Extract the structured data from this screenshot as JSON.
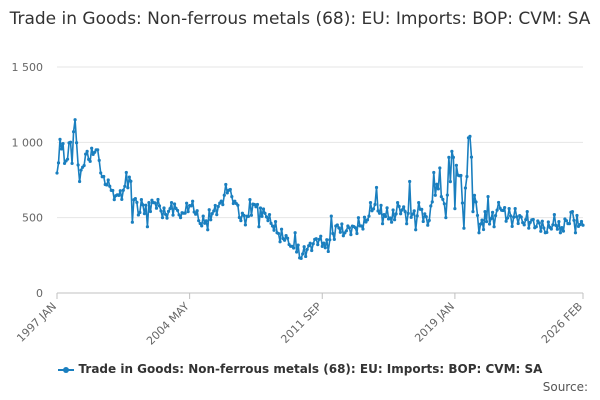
{
  "chart_data": {
    "type": "line",
    "title": "Trade in Goods: Non-ferrous metals (68): EU: Imports: BOP: CVM: SA",
    "xlabel": "",
    "ylabel": "",
    "ylim": [
      0,
      1500
    ],
    "yticks": [
      0,
      500,
      1000,
      1500
    ],
    "ytick_labels": [
      "0",
      "500",
      "1 000",
      "1 500"
    ],
    "xtick_labels": [
      "1997 JAN",
      "2004 MAY",
      "2011 SEP",
      "2019 JAN",
      "2026 FEB"
    ],
    "xtick_index": [
      0,
      88,
      176,
      264,
      349
    ],
    "n_points": 350,
    "grid": true,
    "legend_position": "bottom",
    "series": [
      {
        "name": "Trade in Goods: Non-ferrous metals (68): EU: Imports: BOP: CVM: SA",
        "color": "#1a7fbf",
        "anchors": [
          [
            0,
            780
          ],
          [
            3,
            1000
          ],
          [
            6,
            880
          ],
          [
            9,
            1000
          ],
          [
            12,
            1120
          ],
          [
            15,
            760
          ],
          [
            18,
            880
          ],
          [
            22,
            900
          ],
          [
            26,
            960
          ],
          [
            30,
            760
          ],
          [
            36,
            700
          ],
          [
            42,
            640
          ],
          [
            48,
            760
          ],
          [
            54,
            540
          ],
          [
            60,
            580
          ],
          [
            66,
            600
          ],
          [
            72,
            520
          ],
          [
            78,
            560
          ],
          [
            84,
            540
          ],
          [
            90,
            580
          ],
          [
            96,
            460
          ],
          [
            102,
            520
          ],
          [
            108,
            580
          ],
          [
            114,
            700
          ],
          [
            120,
            560
          ],
          [
            126,
            480
          ],
          [
            132,
            600
          ],
          [
            138,
            520
          ],
          [
            144,
            440
          ],
          [
            150,
            380
          ],
          [
            156,
            320
          ],
          [
            162,
            250
          ],
          [
            168,
            310
          ],
          [
            174,
            350
          ],
          [
            180,
            320
          ],
          [
            186,
            440
          ],
          [
            192,
            420
          ],
          [
            198,
            430
          ],
          [
            204,
            460
          ],
          [
            210,
            580
          ],
          [
            216,
            540
          ],
          [
            222,
            500
          ],
          [
            228,
            560
          ],
          [
            234,
            520
          ],
          [
            240,
            560
          ],
          [
            246,
            480
          ],
          [
            252,
            700
          ],
          [
            258,
            560
          ],
          [
            264,
            920
          ],
          [
            270,
            560
          ],
          [
            274,
            1010
          ],
          [
            278,
            560
          ],
          [
            282,
            440
          ],
          [
            288,
            500
          ],
          [
            294,
            580
          ],
          [
            300,
            480
          ],
          [
            306,
            500
          ],
          [
            312,
            460
          ],
          [
            318,
            480
          ],
          [
            324,
            420
          ],
          [
            330,
            460
          ],
          [
            336,
            440
          ],
          [
            342,
            500
          ],
          [
            349,
            450
          ]
        ],
        "spikes": [
          [
            2,
            1020
          ],
          [
            5,
            860
          ],
          [
            10,
            860
          ],
          [
            12,
            1150
          ],
          [
            15,
            740
          ],
          [
            20,
            940
          ],
          [
            24,
            920
          ],
          [
            28,
            880
          ],
          [
            32,
            720
          ],
          [
            38,
            620
          ],
          [
            46,
            800
          ],
          [
            50,
            470
          ],
          [
            56,
            620
          ],
          [
            60,
            440
          ],
          [
            64,
            600
          ],
          [
            70,
            500
          ],
          [
            76,
            600
          ],
          [
            82,
            500
          ],
          [
            88,
            580
          ],
          [
            94,
            480
          ],
          [
            100,
            420
          ],
          [
            112,
            720
          ],
          [
            116,
            640
          ],
          [
            122,
            480
          ],
          [
            128,
            620
          ],
          [
            134,
            440
          ],
          [
            140,
            480
          ],
          [
            146,
            400
          ],
          [
            148,
            340
          ],
          [
            156,
            310
          ],
          [
            158,
            400
          ],
          [
            162,
            230
          ],
          [
            168,
            330
          ],
          [
            172,
            360
          ],
          [
            178,
            300
          ],
          [
            182,
            510
          ],
          [
            190,
            380
          ],
          [
            200,
            500
          ],
          [
            208,
            600
          ],
          [
            212,
            700
          ],
          [
            216,
            460
          ],
          [
            222,
            470
          ],
          [
            226,
            600
          ],
          [
            232,
            460
          ],
          [
            234,
            740
          ],
          [
            238,
            420
          ],
          [
            240,
            600
          ],
          [
            246,
            450
          ],
          [
            250,
            800
          ],
          [
            254,
            830
          ],
          [
            258,
            500
          ],
          [
            260,
            900
          ],
          [
            262,
            940
          ],
          [
            264,
            560
          ],
          [
            268,
            780
          ],
          [
            270,
            430
          ],
          [
            273,
            1030
          ],
          [
            276,
            540
          ],
          [
            280,
            400
          ],
          [
            284,
            540
          ],
          [
            286,
            640
          ],
          [
            290,
            440
          ],
          [
            300,
            560
          ],
          [
            304,
            560
          ],
          [
            312,
            540
          ],
          [
            318,
            440
          ],
          [
            324,
            400
          ],
          [
            330,
            520
          ],
          [
            334,
            400
          ],
          [
            338,
            480
          ],
          [
            342,
            540
          ],
          [
            344,
            400
          ],
          [
            349,
            450
          ]
        ]
      }
    ]
  },
  "legend": {
    "label": "Trade in Goods: Non-ferrous metals (68): EU: Imports: BOP: CVM: SA"
  },
  "source": {
    "label": "Source:"
  }
}
